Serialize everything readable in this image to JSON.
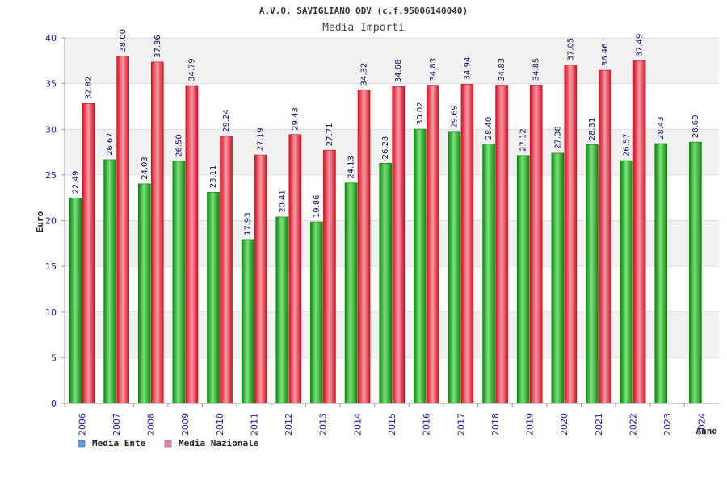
{
  "chart_data": {
    "type": "bar",
    "title": "A.V.O. SAVIGLIANO ODV (c.f.95006140040)",
    "subtitle": "Media Importi",
    "xlabel": "Anno",
    "ylabel": "Euro",
    "ylim": [
      0,
      40
    ],
    "yticks": [
      0,
      5,
      10,
      15,
      20,
      25,
      30,
      35,
      40
    ],
    "grid": true,
    "legend_position": "bottom-left",
    "categories": [
      "2006",
      "2007",
      "2008",
      "2009",
      "2010",
      "2011",
      "2012",
      "2013",
      "2014",
      "2015",
      "2016",
      "2017",
      "2018",
      "2019",
      "2020",
      "2021",
      "2022",
      "2023",
      "2024"
    ],
    "series": [
      {
        "name": "Media Ente",
        "color": "#19b319",
        "legend_color": "#5b9bf0",
        "values": [
          22.49,
          26.67,
          24.03,
          26.5,
          23.11,
          17.93,
          20.41,
          19.86,
          24.13,
          26.28,
          30.02,
          29.69,
          28.4,
          27.12,
          27.38,
          28.31,
          26.57,
          28.43,
          28.6
        ],
        "labels": [
          "22.49",
          "26.67",
          "24.03",
          "26.50",
          "23.11",
          "17.93",
          "20.41",
          "19.86",
          "24.13",
          "26.28",
          "30.02",
          "29.69",
          "28.40",
          "27.12",
          "27.38",
          "28.31",
          "26.57",
          "28.43",
          "28.60"
        ]
      },
      {
        "name": "Media Nazionale",
        "color": "#e8283a",
        "legend_color": "#e77fb5",
        "values": [
          32.82,
          38.0,
          37.36,
          34.79,
          29.24,
          27.19,
          29.43,
          27.71,
          34.32,
          34.68,
          34.83,
          34.94,
          34.83,
          34.85,
          37.05,
          36.46,
          37.49,
          null,
          null
        ],
        "labels": [
          "32.82",
          "38.00",
          "37.36",
          "34.79",
          "29.24",
          "27.19",
          "29.43",
          "27.71",
          "34.32",
          "34.68",
          "34.83",
          "34.94",
          "34.83",
          "34.85",
          "37.05",
          "36.46",
          "37.49",
          null,
          null
        ]
      }
    ]
  }
}
